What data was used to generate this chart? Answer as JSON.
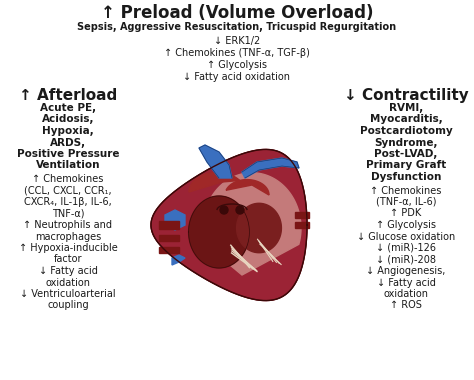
{
  "bg_color": "#ffffff",
  "title_line1": "↑ Preload (Volume Overload)",
  "title_line2": "Sepsis, Aggressive Resuscitation, Tricuspid Regurgitation",
  "preload_lines": [
    "↓ ERK1/2",
    "↑ Chemokines (TNF-α, TGF-β)",
    "↑ Glycolysis",
    "↓ Fatty acid oxidation"
  ],
  "afterload_header": "↑ Afterload",
  "afterload_bold_lines": [
    "Acute PE,",
    "Acidosis,",
    "Hypoxia,",
    "ARDS,",
    "Positive Pressure",
    "Ventilation"
  ],
  "afterload_normal_lines": [
    "↑ Chemokines",
    "(CCL, CXCL, CCR₁,",
    "CXCR₄, IL-1β, IL-6,",
    "TNF-α)",
    "↑ Neutrophils and",
    "macrophages",
    "↑ Hypoxia-inducible",
    "factor",
    "↓ Fatty acid",
    "oxidation",
    "↓ Ventriculoarterial",
    "coupling"
  ],
  "contractility_header": "↓ Contractility",
  "contractility_bold_lines": [
    "RVMI,",
    "Myocarditis,",
    "Postcardiotomy",
    "Syndrome,",
    "Post-LVAD,",
    "Primary Graft",
    "Dysfunction"
  ],
  "contractility_normal_lines": [
    "↑ Chemokines",
    "(TNF-α, IL-6)",
    "↑ PDK",
    "↑ Glycolysis",
    "↓ Glucose oxidation",
    "↓ (miR)-126",
    "↓ (miR)-208",
    "↓ Angiogenesis,",
    "↓ Fatty acid",
    "oxidation",
    "↑ ROS"
  ],
  "text_color": "#1a1a1a"
}
